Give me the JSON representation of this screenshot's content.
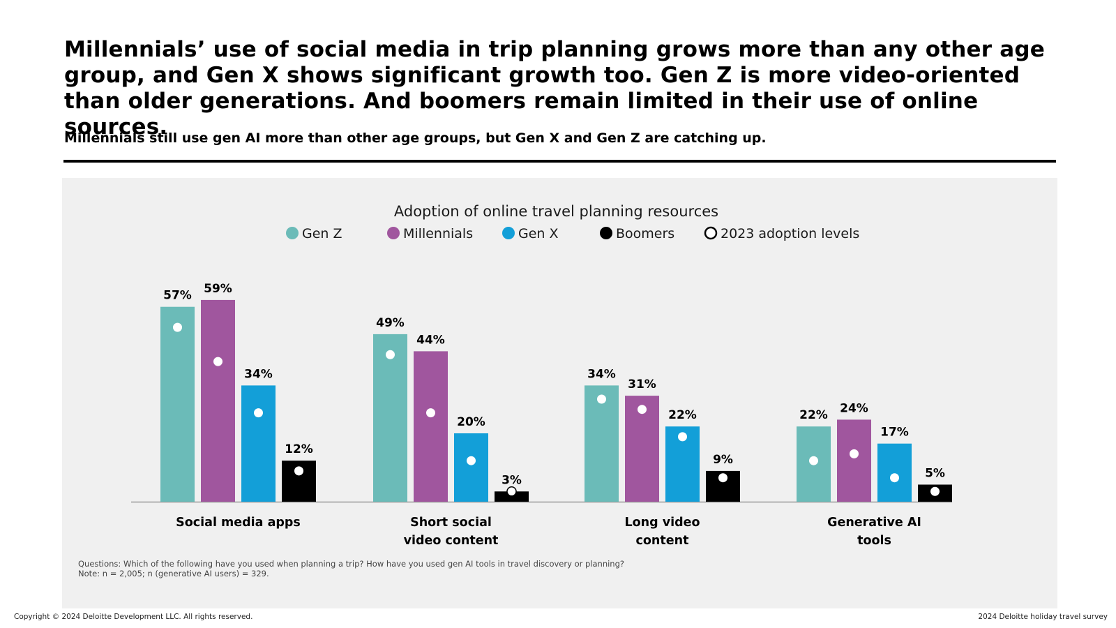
{
  "header": {
    "headline": "Millennials’ use of social media in trip planning grows more than any other age group, and Gen X shows significant growth too. Gen Z is more video-oriented than older generations. And boomers remain limited in their use of online sources.",
    "subhead": "Millennials still use gen AI more than other age groups, but Gen X and Gen Z are catching up."
  },
  "chart_data": {
    "type": "bar",
    "title": "Adoption of online travel planning resources",
    "categories": [
      [
        "Social media apps"
      ],
      [
        "Short social",
        "video content"
      ],
      [
        "Long video",
        "content"
      ],
      [
        "Generative AI",
        "tools"
      ]
    ],
    "series": [
      {
        "name": "Gen Z",
        "color": "#6bbbb8",
        "values": [
          57,
          49,
          34,
          22
        ],
        "labels": [
          "57%",
          "49%",
          "34%",
          "22%"
        ],
        "adoption_2023": [
          51,
          43,
          30,
          12
        ]
      },
      {
        "name": "Millennials",
        "color": "#a0569e",
        "values": [
          59,
          44,
          31,
          24
        ],
        "labels": [
          "59%",
          "44%",
          "31%",
          "24%"
        ],
        "adoption_2023": [
          41,
          26,
          27,
          14
        ]
      },
      {
        "name": "Gen X",
        "color": "#139fd8",
        "values": [
          34,
          20,
          22,
          17
        ],
        "labels": [
          "34%",
          "20%",
          "22%",
          "17%"
        ],
        "adoption_2023": [
          26,
          12,
          19,
          7
        ]
      },
      {
        "name": "Boomers",
        "color": "#000000",
        "values": [
          12,
          3,
          9,
          5
        ],
        "labels": [
          "12%",
          "3%",
          "9%",
          "5%"
        ],
        "adoption_2023": [
          9,
          3,
          7,
          3
        ]
      }
    ],
    "marker_legend": "2023 adoption levels",
    "ylim": [
      0,
      60
    ],
    "grid": false,
    "legend_position": "top"
  },
  "notes": {
    "questions": "Questions: Which of the following have you used when planning a trip? How have you used gen AI tools in travel discovery or planning?",
    "note": "Note: n = 2,005; n (generative AI users) = 329."
  },
  "footer": {
    "copyright": "Copyright © 2024 Deloitte Development LLC. All rights reserved.",
    "source": "2024 Deloitte holiday travel survey"
  }
}
